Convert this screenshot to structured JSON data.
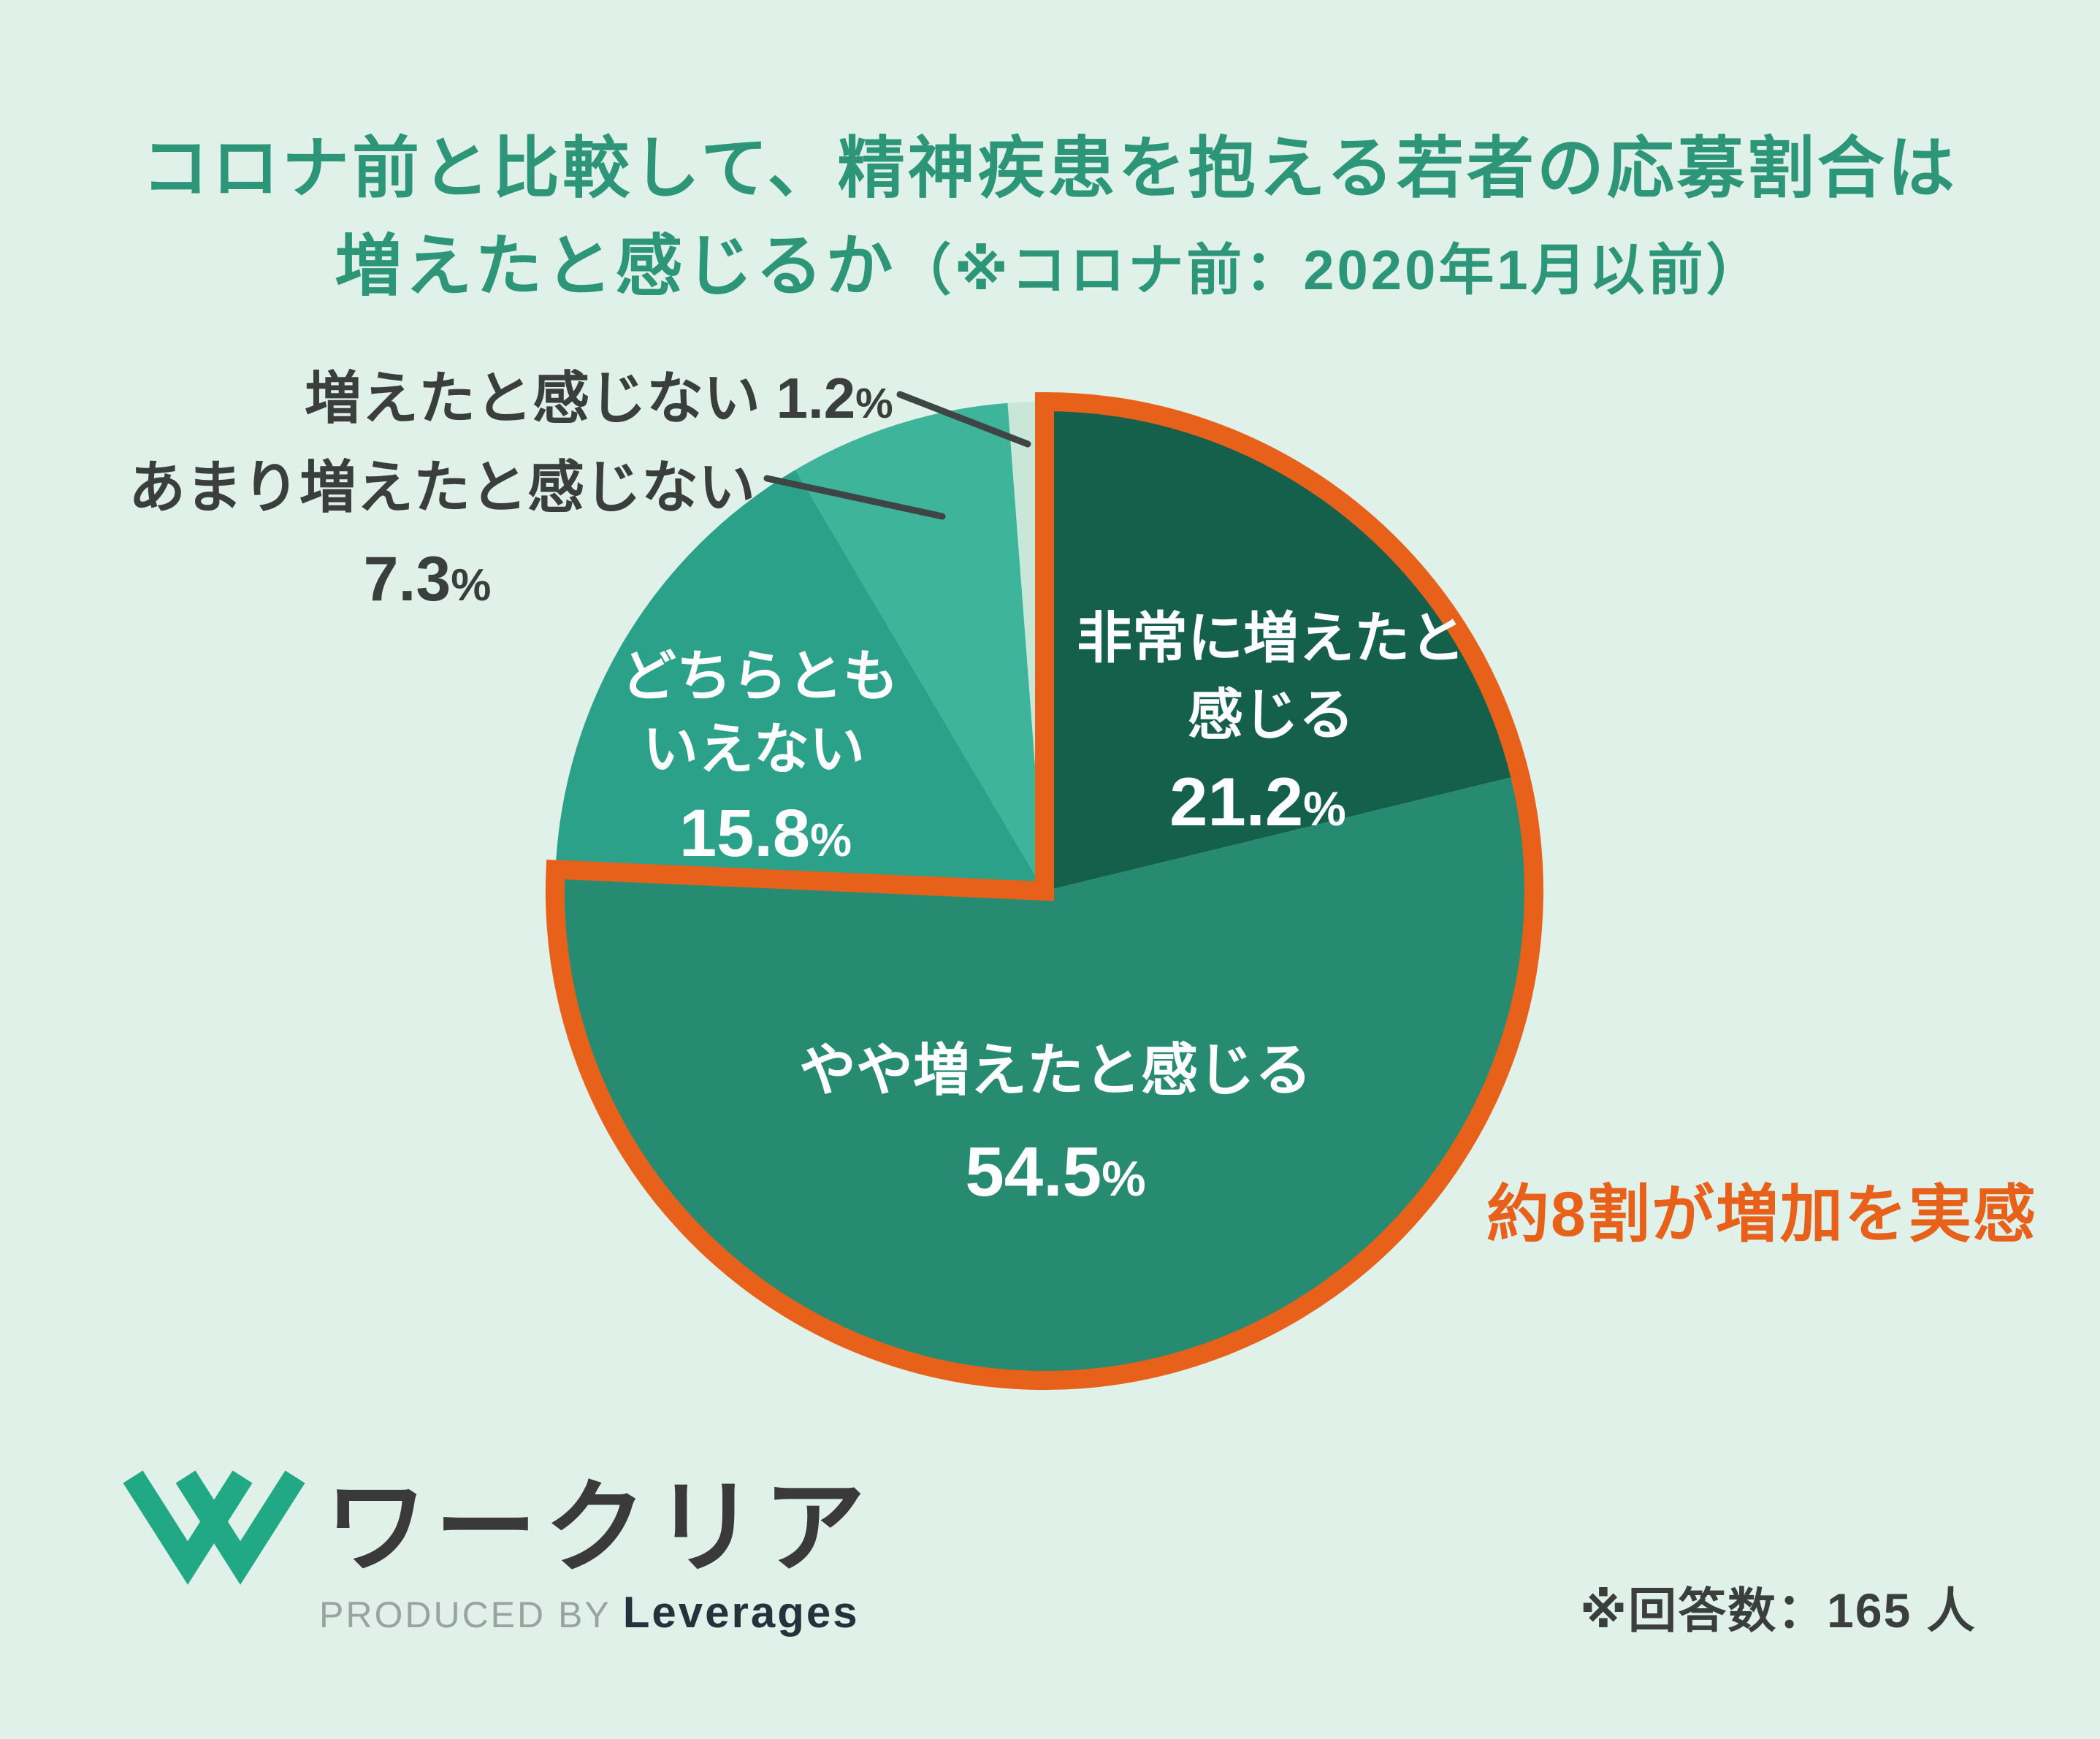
{
  "display": {
    "title_line1": "コロナ前と比較して、精神疾患を抱える若者の応募割合は",
    "title_line2_main": "増えたと感じるか",
    "title_line2_paren": "（※コロナ前：2020年1月以前）",
    "callout_no_increase_label": "増えたと感じない ",
    "callout_no_increase_value": "1.2",
    "callout_small_increase_label": "あまり増えたと感じない",
    "callout_small_increase_value": "7.3",
    "slice_very_line1": "非常に増えたと",
    "slice_very_line2": "感じる",
    "slice_very_value": "21.2",
    "slice_somewhat_label": "やや増えたと感じる",
    "slice_somewhat_value": "54.5",
    "slice_neutral_line1": "どちらとも",
    "slice_neutral_line2": "いえない",
    "slice_neutral_value": "15.8",
    "percent_sign": "%",
    "annotation": "約8割が増加を実感",
    "respondents_note": "※回答数：165 人",
    "logo_text": "ワークリア",
    "produced_by": "PRODUCED BY ",
    "company": "Leverages"
  },
  "colors": {
    "background": "#e0f1ea",
    "title_green": "#2d9678",
    "accent_orange": "#e8611b",
    "dark_text": "#3a3f3e",
    "white_text": "#ffffff",
    "logo_green": "#21a885",
    "logo_text_dark": "#3a3a3a",
    "produced_gray": "#9aa3a1",
    "company_dark": "#22333b"
  },
  "chart_data": {
    "type": "pie",
    "title": "コロナ前と比較して、精神疾患を抱える若者の応募割合は増えたと感じるか（※コロナ前：2020年1月以前）",
    "categories": [
      "非常に増えたと感じる",
      "やや増えたと感じる",
      "どちらともいえない",
      "あまり増えたと感じない",
      "増えたと感じない"
    ],
    "values": [
      21.2,
      54.5,
      15.8,
      7.3,
      1.2
    ],
    "colors": [
      "#14604b",
      "#268b71",
      "#2ba189",
      "#3eb49a",
      "#c8e7d9"
    ],
    "unit": "%",
    "start_angle_deg": 0,
    "direction": "clockwise",
    "legend_position": "labels-on-slices-and-callouts",
    "annotation": {
      "text": "約8割が増加を実感",
      "applies_to": [
        "非常に増えたと感じる",
        "やや増えたと感じる"
      ],
      "combined_percent": 75.7,
      "style": "orange outline around highlighted slices"
    },
    "sample_size_note": "※回答数：165 人",
    "sample_size": 165
  }
}
